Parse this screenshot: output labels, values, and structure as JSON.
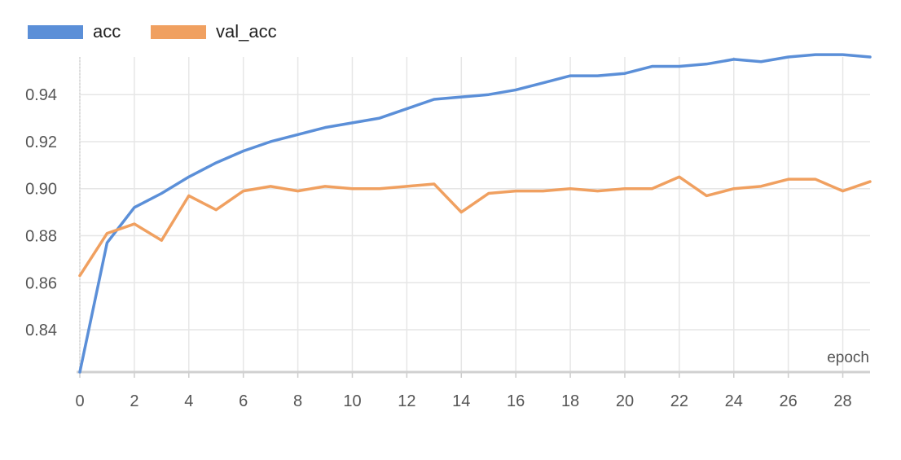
{
  "chart_data": {
    "type": "line",
    "title": "",
    "xlabel": "epoch",
    "ylabel": "",
    "xlim": [
      0,
      29
    ],
    "ylim": [
      0.822,
      0.956
    ],
    "xticks": [
      0,
      2,
      4,
      6,
      8,
      10,
      12,
      14,
      16,
      18,
      20,
      22,
      24,
      26,
      28
    ],
    "xtick_labels": [
      "0",
      "2",
      "4",
      "6",
      "8",
      "10",
      "12",
      "14",
      "16",
      "18",
      "20",
      "22",
      "24",
      "26",
      "28"
    ],
    "yticks": [
      0.84,
      0.86,
      0.88,
      0.9,
      0.92,
      0.94
    ],
    "ytick_labels": [
      "0.84",
      "0.86",
      "0.88",
      "0.90",
      "0.92",
      "0.94"
    ],
    "grid": true,
    "legend_position": "top-left",
    "x": [
      0,
      1,
      2,
      3,
      4,
      5,
      6,
      7,
      8,
      9,
      10,
      11,
      12,
      13,
      14,
      15,
      16,
      17,
      18,
      19,
      20,
      21,
      22,
      23,
      24,
      25,
      26,
      27,
      28,
      29
    ],
    "series": [
      {
        "name": "acc",
        "color": "#5b8fd8",
        "values": [
          0.822,
          0.877,
          0.892,
          0.898,
          0.905,
          0.911,
          0.916,
          0.92,
          0.923,
          0.926,
          0.928,
          0.93,
          0.934,
          0.938,
          0.939,
          0.94,
          0.942,
          0.945,
          0.948,
          0.948,
          0.949,
          0.952,
          0.952,
          0.953,
          0.955,
          0.954,
          0.956,
          0.957,
          0.957,
          0.956
        ]
      },
      {
        "name": "val_acc",
        "color": "#f0a060",
        "values": [
          0.863,
          0.881,
          0.885,
          0.878,
          0.897,
          0.891,
          0.899,
          0.901,
          0.899,
          0.901,
          0.9,
          0.9,
          0.901,
          0.902,
          0.89,
          0.898,
          0.899,
          0.899,
          0.9,
          0.899,
          0.9,
          0.9,
          0.905,
          0.897,
          0.9,
          0.901,
          0.904,
          0.904,
          0.899,
          0.903
        ]
      }
    ]
  }
}
